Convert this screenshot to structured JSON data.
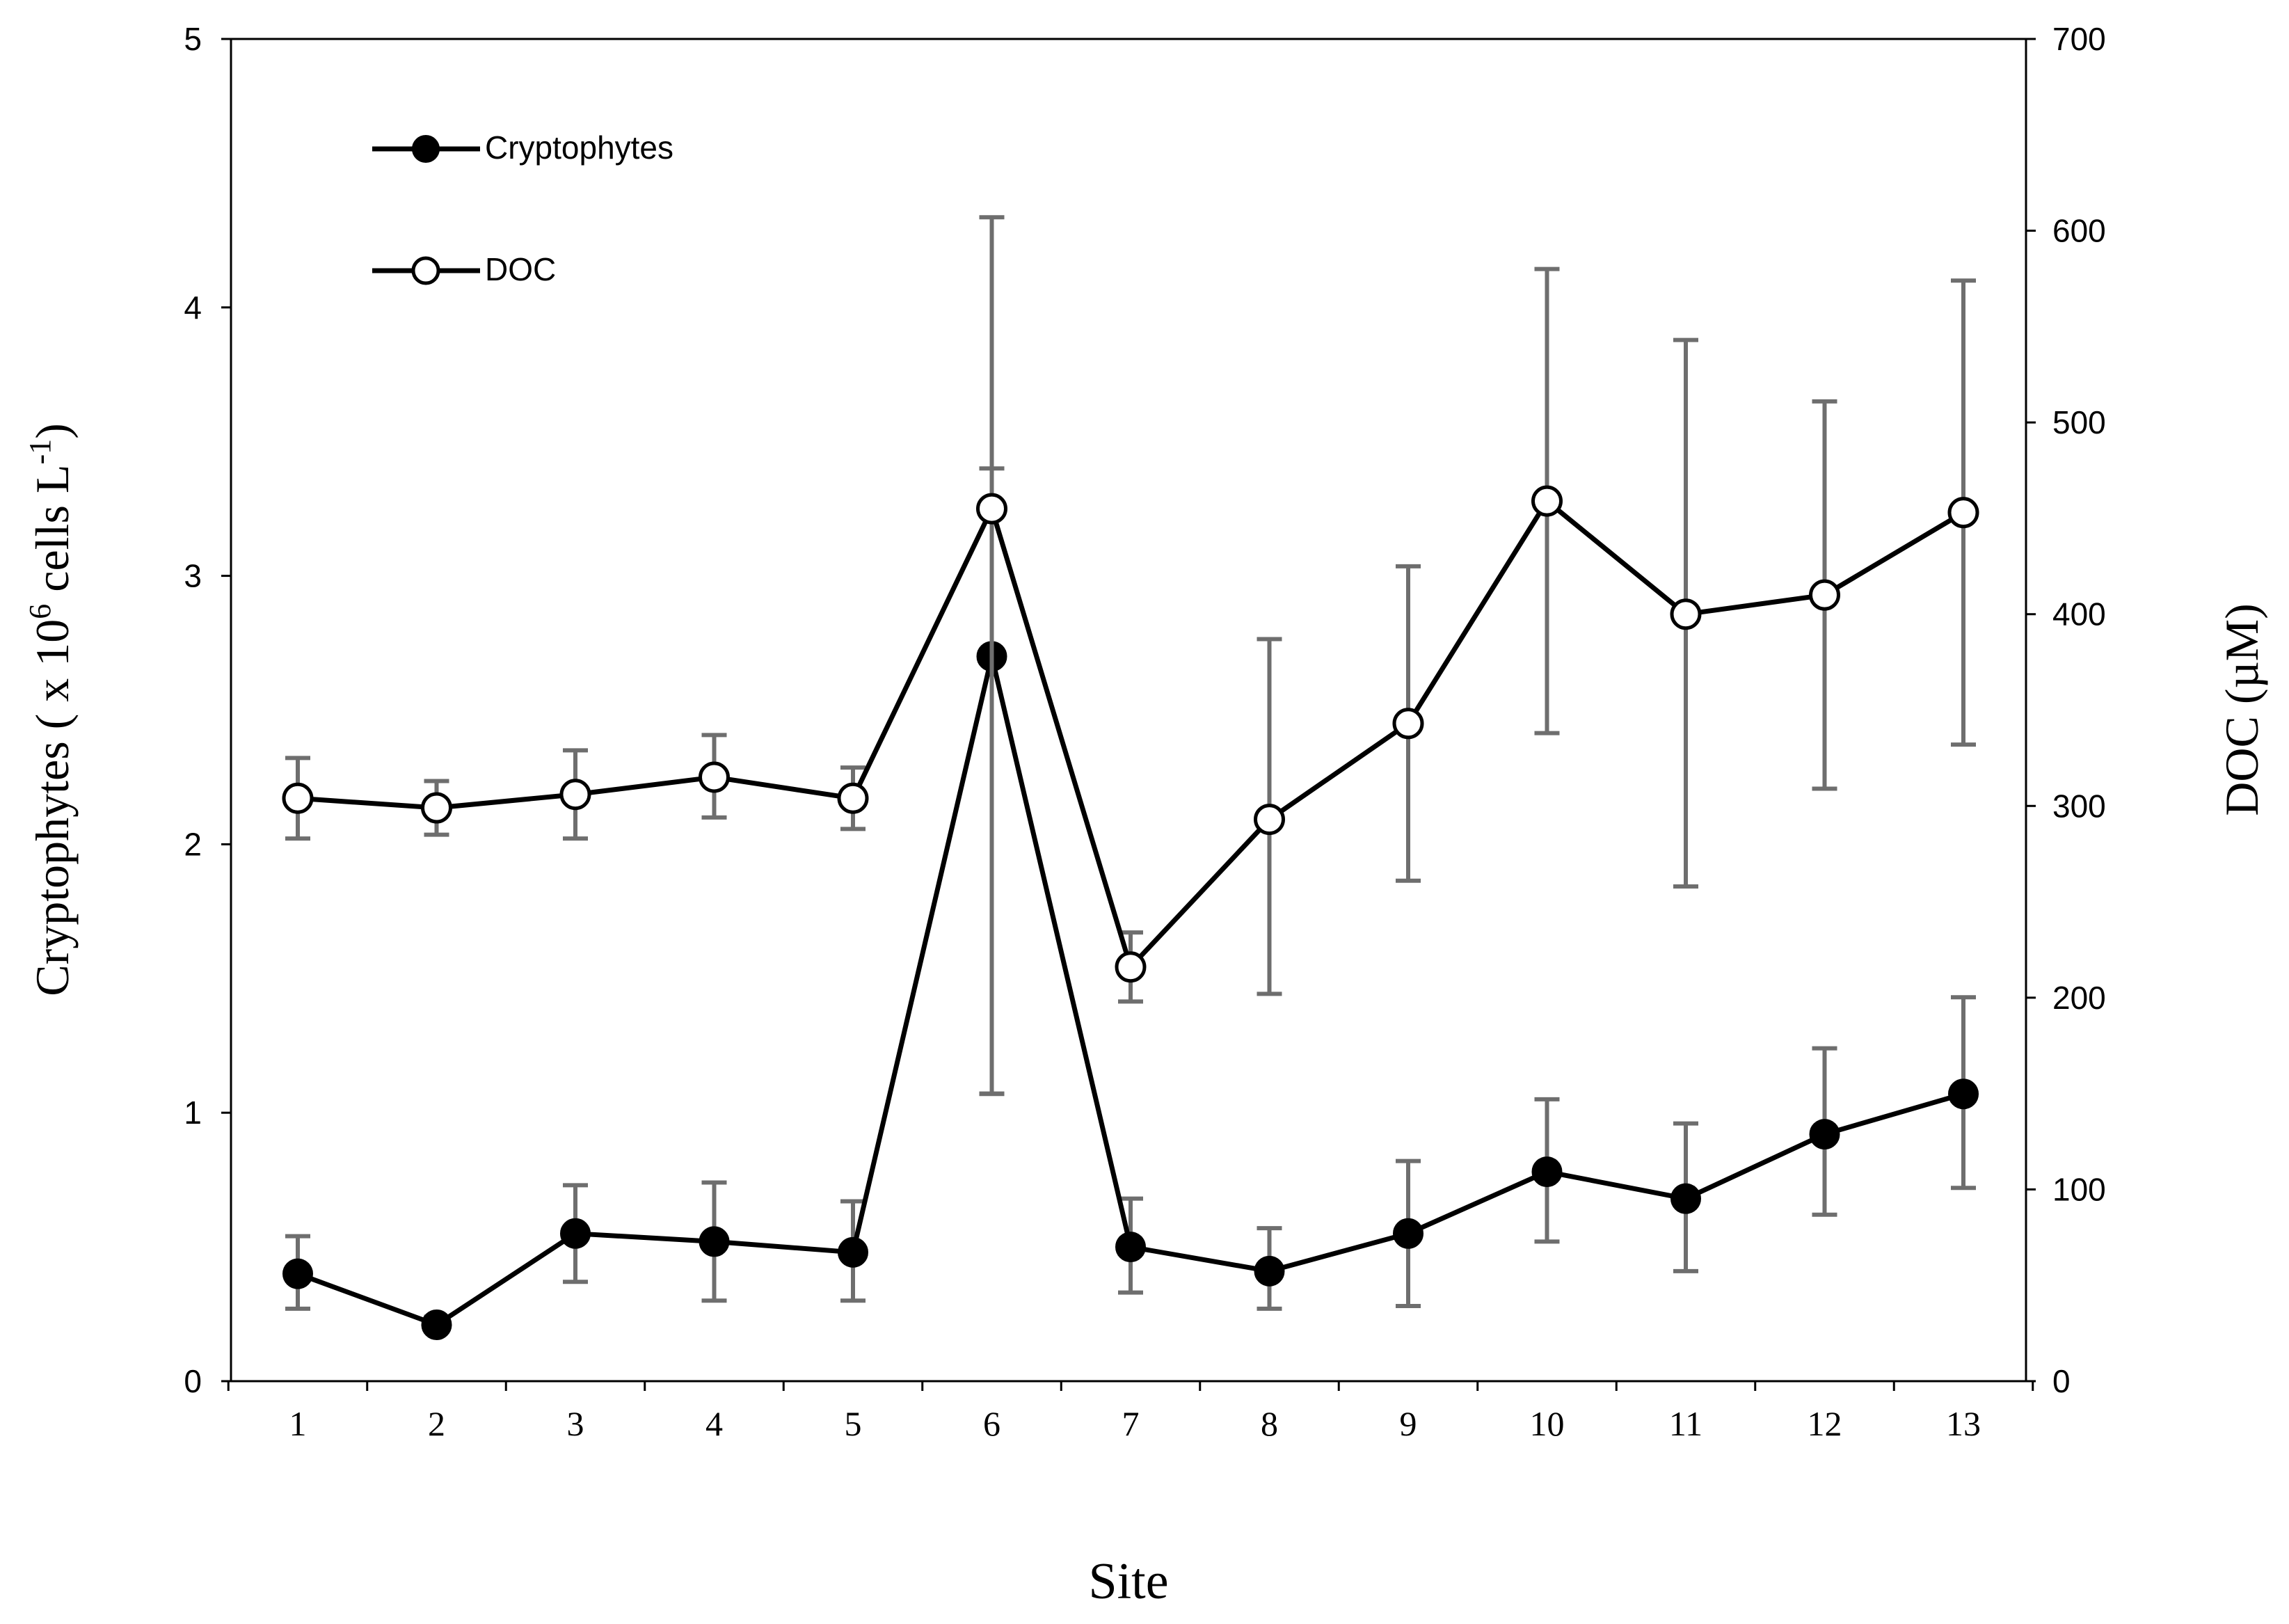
{
  "chart_data": {
    "type": "line",
    "title": "",
    "xlabel": "Site",
    "ylabel": "Cryptophytes ( x 10",
    "ylabel_sup": "6",
    "ylabel_mid": " cells L",
    "ylabel_sup2": "-1",
    "ylabel_end": ")",
    "y2label": "DOC (µM)",
    "categories": [
      "1",
      "2",
      "3",
      "4",
      "5",
      "6",
      "7",
      "8",
      "9",
      "10",
      "11",
      "12",
      "13"
    ],
    "ylim": [
      0,
      5
    ],
    "y_ticks": [
      "0",
      "1",
      "2",
      "3",
      "4",
      "5"
    ],
    "y2lim": [
      0,
      700
    ],
    "y2_ticks": [
      "0",
      "100",
      "200",
      "300",
      "400",
      "500",
      "600",
      "700"
    ],
    "grid": false,
    "legend_position": "top-left",
    "series": [
      {
        "name": "Cryptophytes",
        "axis": "left",
        "marker": "filled-circle",
        "values": [
          0.4,
          0.21,
          0.55,
          0.52,
          0.48,
          2.7,
          0.5,
          0.41,
          0.55,
          0.78,
          0.68,
          0.92,
          1.07
        ],
        "err_low": [
          0.27,
          0.19,
          0.37,
          0.3,
          0.3,
          1.07,
          0.33,
          0.27,
          0.28,
          0.52,
          0.41,
          0.62,
          0.72
        ],
        "err_high": [
          0.54,
          0.24,
          0.73,
          0.74,
          0.67,
          3.4,
          0.68,
          0.57,
          0.82,
          1.05,
          0.96,
          1.24,
          1.43
        ]
      },
      {
        "name": "DOC",
        "axis": "right",
        "marker": "open-circle",
        "values": [
          304,
          299,
          306,
          315,
          304,
          455,
          216,
          293,
          343,
          459,
          400,
          410,
          453
        ],
        "err_low": [
          283,
          285,
          283,
          294,
          288,
          150,
          198,
          202,
          261,
          338,
          258,
          309,
          332
        ],
        "err_high": [
          325,
          313,
          329,
          337,
          320,
          607,
          234,
          387,
          425,
          580,
          543,
          511,
          574
        ]
      }
    ]
  }
}
